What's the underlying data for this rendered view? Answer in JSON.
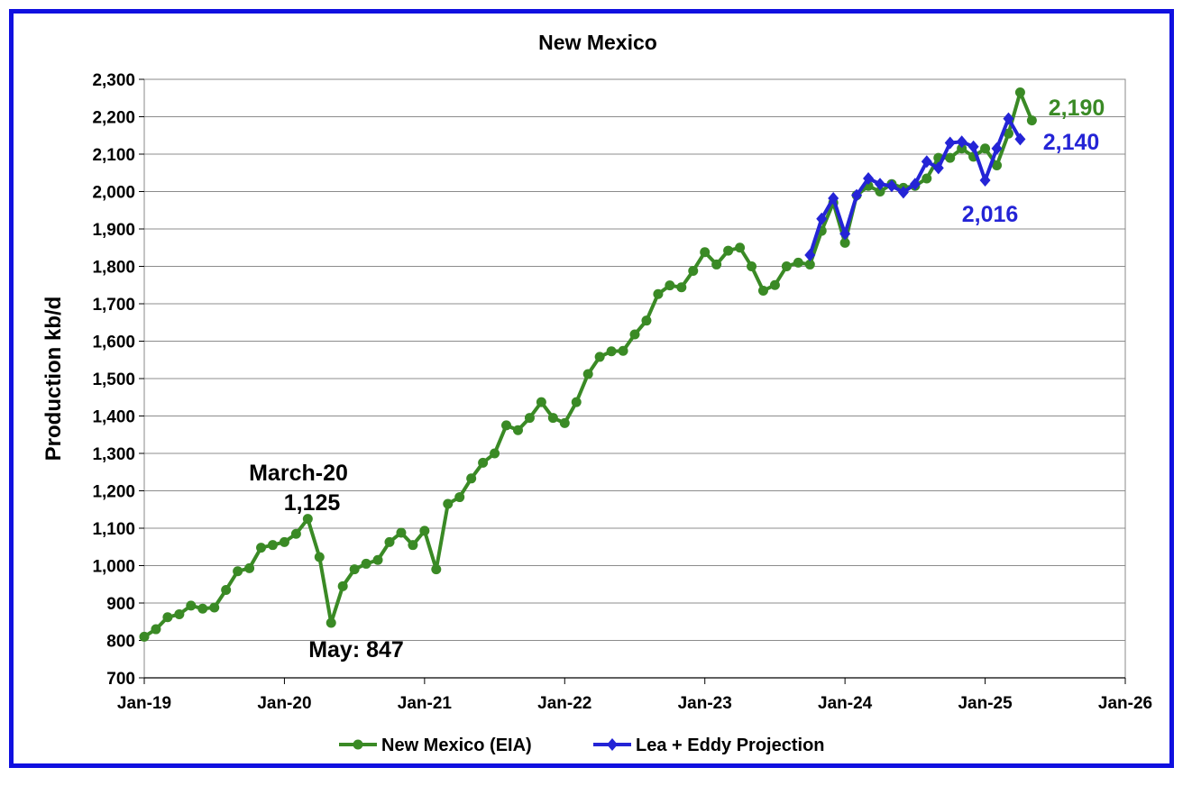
{
  "chart_data": {
    "type": "line",
    "title": "New Mexico",
    "xlabel": "",
    "ylabel": "Production kb/d",
    "ylim": [
      700,
      2300
    ],
    "ytick_step": 100,
    "y_ticks": [
      "700",
      "800",
      "900",
      "1,000",
      "1,100",
      "1,200",
      "1,300",
      "1,400",
      "1,500",
      "1,600",
      "1,700",
      "1,800",
      "1,900",
      "2,000",
      "2,100",
      "2,200",
      "2,300"
    ],
    "x_ticks": [
      "Jan-19",
      "Jan-20",
      "Jan-21",
      "Jan-22",
      "Jan-23",
      "Jan-24",
      "Jan-25",
      "Jan-26"
    ],
    "x_range": [
      "2019-01",
      "2026-01"
    ],
    "grid": "horizontal",
    "legend": "bottom",
    "series": [
      {
        "name": "New Mexico (EIA)",
        "color": "#3a8a25",
        "marker": "circle",
        "x_start": "2019-01",
        "values": [
          810,
          830,
          862,
          870,
          893,
          885,
          888,
          935,
          985,
          993,
          1048,
          1055,
          1063,
          1085,
          1125,
          1023,
          847,
          945,
          990,
          1005,
          1015,
          1063,
          1088,
          1055,
          1093,
          990,
          1165,
          1183,
          1233,
          1275,
          1300,
          1375,
          1362,
          1395,
          1437,
          1395,
          1381,
          1437,
          1512,
          1558,
          1573,
          1574,
          1618,
          1655,
          1726,
          1749,
          1744,
          1788,
          1838,
          1805,
          1842,
          1850,
          1800,
          1735,
          1750,
          1800,
          1810,
          1805,
          1895,
          1970,
          1863,
          1990,
          2015,
          2000,
          2020,
          2010,
          2015,
          2035,
          2090,
          2090,
          2115,
          2093,
          2115,
          2070,
          2155,
          2265,
          2190
        ]
      },
      {
        "name": "Lea + Eddy Projection",
        "color": "#2424d6",
        "marker": "diamond",
        "x_start": "2023-10",
        "values": [
          1830,
          1927,
          1982,
          1887,
          1990,
          2035,
          2020,
          2015,
          1998,
          2020,
          2080,
          2063,
          2130,
          2133,
          2120,
          2030,
          2115,
          2195,
          2140
        ]
      }
    ],
    "annotations": [
      {
        "text": "March-20",
        "color": "#000000"
      },
      {
        "text": "1,125",
        "color": "#000000"
      },
      {
        "text": "May: 847",
        "color": "#000000"
      },
      {
        "text": "2,190",
        "color": "#3a8a25"
      },
      {
        "text": "2,140",
        "color": "#2424d6"
      },
      {
        "text": "2,016",
        "color": "#2424d6"
      }
    ]
  }
}
